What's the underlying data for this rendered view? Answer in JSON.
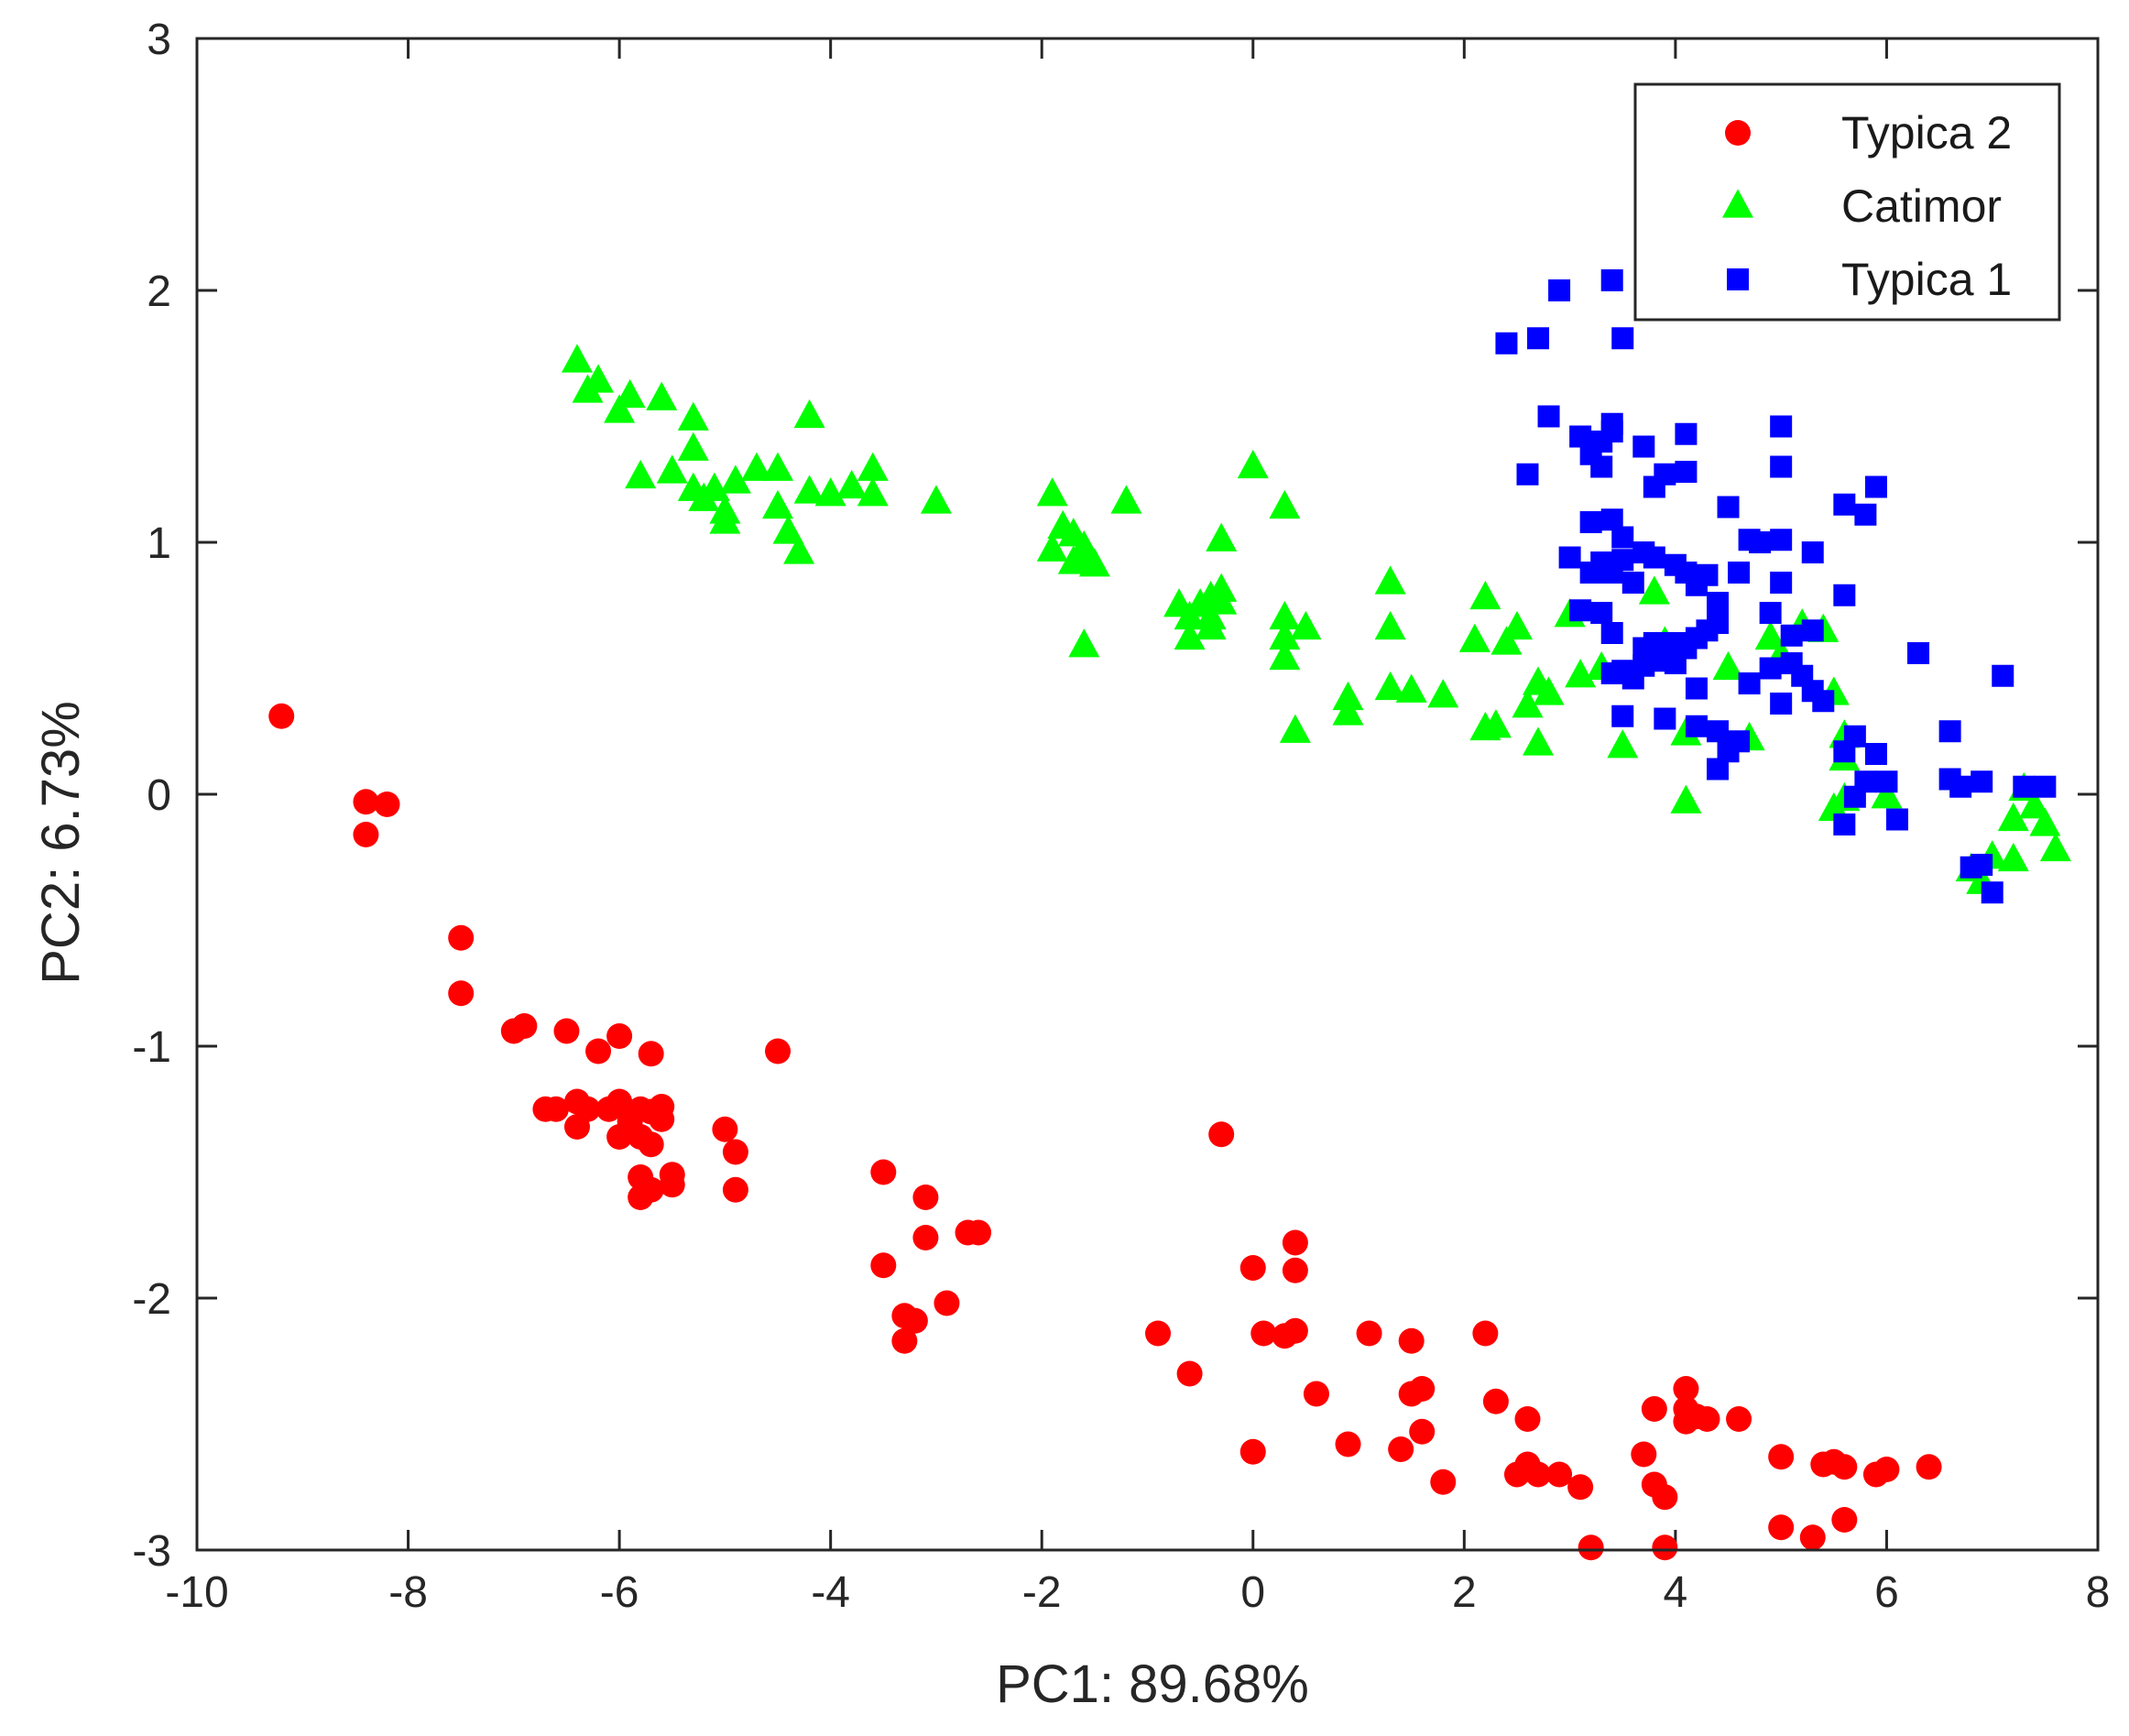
{
  "chart_data": {
    "type": "scatter",
    "title": "",
    "xlabel": "PC1: 89.68%",
    "ylabel": "PC2: 6.73%",
    "xlim": [
      -10,
      8
    ],
    "ylim": [
      -3,
      3
    ],
    "xticks": [
      -10,
      -8,
      -6,
      -4,
      -2,
      0,
      2,
      4,
      6,
      8
    ],
    "yticks": [
      -3,
      -2,
      -1,
      0,
      1,
      2,
      3
    ],
    "xtick_labels": [
      "-10",
      "-8",
      "-6",
      "-4",
      "-2",
      "0",
      "2",
      "4",
      "6",
      "8"
    ],
    "ytick_labels": [
      "-3",
      "-2",
      "-1",
      "0",
      "1",
      "2",
      "3"
    ],
    "grid": false,
    "legend_position": "top-right",
    "series": [
      {
        "name": "Typica 2",
        "marker": "circle",
        "color": "#ff0000",
        "points": [
          [
            -9.2,
            0.31
          ],
          [
            -8.4,
            -0.03
          ],
          [
            -8.4,
            -0.16
          ],
          [
            -8.2,
            -0.04
          ],
          [
            -7.5,
            -0.57
          ],
          [
            -7.5,
            -0.79
          ],
          [
            -7.0,
            -0.94
          ],
          [
            -6.9,
            -0.92
          ],
          [
            -6.5,
            -0.94
          ],
          [
            -6.7,
            -1.25
          ],
          [
            -6.6,
            -1.25
          ],
          [
            -6.4,
            -1.22
          ],
          [
            -6.3,
            -1.25
          ],
          [
            -6.4,
            -1.32
          ],
          [
            -6.2,
            -1.02
          ],
          [
            -6.1,
            -1.25
          ],
          [
            -6.0,
            -0.96
          ],
          [
            -6.0,
            -1.22
          ],
          [
            -5.9,
            -1.3
          ],
          [
            -5.8,
            -1.25
          ],
          [
            -5.8,
            -1.36
          ],
          [
            -6.0,
            -1.36
          ],
          [
            -5.7,
            -1.03
          ],
          [
            -5.7,
            -1.26
          ],
          [
            -5.6,
            -1.24
          ],
          [
            -5.6,
            -1.29
          ],
          [
            -5.7,
            -1.39
          ],
          [
            -5.8,
            -1.52
          ],
          [
            -5.8,
            -1.6
          ],
          [
            -5.7,
            -1.57
          ],
          [
            -5.5,
            -1.51
          ],
          [
            -5.5,
            -1.55
          ],
          [
            -5.0,
            -1.33
          ],
          [
            -4.9,
            -1.42
          ],
          [
            -4.9,
            -1.57
          ],
          [
            -4.5,
            -1.02
          ],
          [
            -3.5,
            -1.5
          ],
          [
            -3.5,
            -1.87
          ],
          [
            -3.3,
            -2.07
          ],
          [
            -3.2,
            -2.09
          ],
          [
            -3.3,
            -2.17
          ],
          [
            -3.1,
            -1.6
          ],
          [
            -3.1,
            -1.76
          ],
          [
            -2.9,
            -2.02
          ],
          [
            -2.7,
            -1.74
          ],
          [
            -2.6,
            -1.74
          ],
          [
            -0.3,
            -1.35
          ],
          [
            -0.9,
            -2.14
          ],
          [
            -0.6,
            -2.3
          ],
          [
            0.0,
            -1.88
          ],
          [
            0.4,
            -1.78
          ],
          [
            0.4,
            -1.89
          ],
          [
            0.1,
            -2.14
          ],
          [
            0.3,
            -2.15
          ],
          [
            0.4,
            -2.13
          ],
          [
            0.6,
            -2.38
          ],
          [
            0.0,
            -2.61
          ],
          [
            0.9,
            -2.58
          ],
          [
            1.1,
            -2.14
          ],
          [
            1.5,
            -2.17
          ],
          [
            1.5,
            -2.38
          ],
          [
            1.6,
            -2.36
          ],
          [
            1.6,
            -2.53
          ],
          [
            1.4,
            -2.6
          ],
          [
            1.8,
            -2.73
          ],
          [
            2.2,
            -2.14
          ],
          [
            2.3,
            -2.41
          ],
          [
            2.6,
            -2.48
          ],
          [
            2.5,
            -2.7
          ],
          [
            2.6,
            -2.66
          ],
          [
            2.7,
            -2.7
          ],
          [
            2.9,
            -2.7
          ],
          [
            3.1,
            -2.75
          ],
          [
            3.2,
            -2.99
          ],
          [
            3.7,
            -2.62
          ],
          [
            3.8,
            -2.44
          ],
          [
            3.8,
            -2.74
          ],
          [
            3.9,
            -2.79
          ],
          [
            3.9,
            -2.99
          ],
          [
            4.1,
            -2.36
          ],
          [
            4.1,
            -2.44
          ],
          [
            4.1,
            -2.49
          ],
          [
            4.2,
            -2.47
          ],
          [
            4.3,
            -2.48
          ],
          [
            4.6,
            -2.48
          ],
          [
            5.0,
            -2.63
          ],
          [
            5.0,
            -2.91
          ],
          [
            5.3,
            -2.95
          ],
          [
            5.4,
            -2.66
          ],
          [
            5.5,
            -2.65
          ],
          [
            5.6,
            -2.67
          ],
          [
            5.6,
            -2.88
          ],
          [
            5.9,
            -2.7
          ],
          [
            6.0,
            -2.68
          ],
          [
            6.4,
            -2.67
          ]
        ]
      },
      {
        "name": "Catimor",
        "marker": "triangle",
        "color": "#00ff00",
        "points": [
          [
            -6.4,
            1.72
          ],
          [
            -6.3,
            1.6
          ],
          [
            -6.2,
            1.64
          ],
          [
            -6.0,
            1.52
          ],
          [
            -5.9,
            1.58
          ],
          [
            -5.6,
            1.57
          ],
          [
            -5.3,
            1.49
          ],
          [
            -5.3,
            1.37
          ],
          [
            -5.3,
            1.21
          ],
          [
            -5.8,
            1.26
          ],
          [
            -5.5,
            1.28
          ],
          [
            -5.2,
            1.17
          ],
          [
            -5.1,
            1.21
          ],
          [
            -5.0,
            1.12
          ],
          [
            -5.0,
            1.08
          ],
          [
            -4.9,
            1.24
          ],
          [
            -4.7,
            1.29
          ],
          [
            -4.5,
            1.29
          ],
          [
            -4.5,
            1.14
          ],
          [
            -4.4,
            1.04
          ],
          [
            -4.3,
            0.96
          ],
          [
            -4.2,
            1.5
          ],
          [
            -4.2,
            1.2
          ],
          [
            -4.0,
            1.19
          ],
          [
            -3.8,
            1.22
          ],
          [
            -3.6,
            1.29
          ],
          [
            -3.6,
            1.19
          ],
          [
            -3.0,
            1.16
          ],
          [
            -1.9,
            1.19
          ],
          [
            -1.9,
            0.97
          ],
          [
            -1.8,
            1.06
          ],
          [
            -1.7,
            1.03
          ],
          [
            -1.6,
            0.98
          ],
          [
            -1.6,
            0.93
          ],
          [
            -1.7,
            0.92
          ],
          [
            -1.5,
            0.91
          ],
          [
            -1.2,
            1.16
          ],
          [
            -1.6,
            0.59
          ],
          [
            -0.7,
            0.75
          ],
          [
            -0.6,
            0.7
          ],
          [
            -0.6,
            0.62
          ],
          [
            -0.5,
            0.75
          ],
          [
            -0.4,
            0.78
          ],
          [
            -0.4,
            0.7
          ],
          [
            -0.4,
            0.66
          ],
          [
            -0.3,
            1.01
          ],
          [
            -0.3,
            0.81
          ],
          [
            -0.3,
            0.76
          ],
          [
            0.0,
            1.3
          ],
          [
            0.3,
            1.14
          ],
          [
            0.3,
            0.7
          ],
          [
            0.3,
            0.62
          ],
          [
            0.3,
            0.54
          ],
          [
            0.5,
            0.66
          ],
          [
            0.4,
            0.25
          ],
          [
            0.9,
            0.38
          ],
          [
            0.9,
            0.32
          ],
          [
            1.3,
            0.84
          ],
          [
            1.3,
            0.66
          ],
          [
            1.3,
            0.42
          ],
          [
            1.5,
            0.41
          ],
          [
            1.8,
            0.39
          ],
          [
            2.1,
            0.61
          ],
          [
            2.2,
            0.78
          ],
          [
            2.2,
            0.26
          ],
          [
            2.3,
            0.27
          ],
          [
            2.4,
            0.6
          ],
          [
            2.5,
            0.66
          ],
          [
            2.6,
            0.35
          ],
          [
            2.7,
            0.44
          ],
          [
            2.7,
            0.2
          ],
          [
            2.8,
            0.4
          ],
          [
            3.0,
            0.71
          ],
          [
            3.1,
            0.47
          ],
          [
            3.3,
            0.5
          ],
          [
            3.5,
            0.19
          ],
          [
            3.8,
            0.8
          ],
          [
            3.9,
            0.6
          ],
          [
            4.1,
            0.24
          ],
          [
            4.1,
            -0.03
          ],
          [
            4.5,
            0.5
          ],
          [
            4.7,
            0.22
          ],
          [
            4.9,
            0.62
          ],
          [
            5.0,
            0.55
          ],
          [
            5.2,
            0.67
          ],
          [
            5.4,
            0.65
          ],
          [
            5.5,
            0.4
          ],
          [
            5.6,
            0.23
          ],
          [
            5.6,
            0.14
          ],
          [
            5.5,
            -0.06
          ],
          [
            5.6,
            -0.02
          ],
          [
            6.0,
            -0.01
          ],
          [
            6.8,
            -0.3
          ],
          [
            6.9,
            -0.35
          ],
          [
            7.0,
            -0.25
          ],
          [
            7.2,
            -0.1
          ],
          [
            7.2,
            -0.26
          ],
          [
            7.3,
            0.02
          ],
          [
            7.4,
            -0.05
          ],
          [
            7.5,
            -0.12
          ],
          [
            7.6,
            -0.22
          ]
        ]
      },
      {
        "name": "Typica 1",
        "marker": "square",
        "color": "#0000ff",
        "points": [
          [
            2.4,
            1.79
          ],
          [
            2.7,
            1.81
          ],
          [
            2.9,
            2.0
          ],
          [
            3.4,
            2.04
          ],
          [
            3.5,
            1.81
          ],
          [
            2.8,
            1.5
          ],
          [
            3.1,
            1.42
          ],
          [
            3.2,
            1.35
          ],
          [
            3.3,
            1.4
          ],
          [
            3.4,
            1.44
          ],
          [
            3.4,
            1.47
          ],
          [
            2.6,
            1.27
          ],
          [
            3.3,
            1.3
          ],
          [
            3.7,
            1.38
          ],
          [
            3.8,
            1.22
          ],
          [
            3.9,
            1.27
          ],
          [
            4.1,
            1.43
          ],
          [
            4.1,
            1.28
          ],
          [
            4.5,
            1.14
          ],
          [
            5.0,
            1.46
          ],
          [
            5.0,
            1.3
          ],
          [
            5.6,
            1.15
          ],
          [
            5.9,
            1.22
          ],
          [
            5.8,
            1.11
          ],
          [
            3.2,
            1.08
          ],
          [
            3.4,
            1.09
          ],
          [
            3.5,
            1.02
          ],
          [
            3.0,
            0.94
          ],
          [
            3.2,
            0.88
          ],
          [
            3.3,
            0.92
          ],
          [
            3.4,
            0.88
          ],
          [
            3.5,
            0.93
          ],
          [
            3.6,
            0.84
          ],
          [
            3.7,
            0.96
          ],
          [
            3.8,
            0.94
          ],
          [
            4.0,
            0.91
          ],
          [
            4.1,
            0.88
          ],
          [
            4.2,
            0.83
          ],
          [
            4.3,
            0.87
          ],
          [
            4.6,
            0.88
          ],
          [
            4.7,
            1.01
          ],
          [
            4.8,
            1.0
          ],
          [
            5.0,
            1.01
          ],
          [
            5.3,
            0.96
          ],
          [
            5.6,
            0.79
          ],
          [
            4.4,
            0.76
          ],
          [
            4.9,
            0.72
          ],
          [
            5.0,
            0.84
          ],
          [
            3.1,
            0.73
          ],
          [
            3.3,
            0.72
          ],
          [
            3.4,
            0.64
          ],
          [
            3.7,
            0.58
          ],
          [
            3.8,
            0.6
          ],
          [
            3.9,
            0.55
          ],
          [
            4.0,
            0.6
          ],
          [
            4.1,
            0.58
          ],
          [
            4.2,
            0.62
          ],
          [
            4.3,
            0.65
          ],
          [
            4.4,
            0.68
          ],
          [
            5.1,
            0.63
          ],
          [
            5.3,
            0.65
          ],
          [
            5.1,
            0.52
          ],
          [
            5.2,
            0.47
          ],
          [
            5.3,
            0.41
          ],
          [
            5.4,
            0.37
          ],
          [
            3.4,
            0.48
          ],
          [
            3.5,
            0.49
          ],
          [
            3.6,
            0.46
          ],
          [
            3.7,
            0.51
          ],
          [
            3.8,
            0.53
          ],
          [
            4.2,
            0.42
          ],
          [
            4.0,
            0.52
          ],
          [
            4.9,
            0.5
          ],
          [
            4.7,
            0.44
          ],
          [
            5.0,
            0.36
          ],
          [
            3.5,
            0.31
          ],
          [
            3.9,
            0.3
          ],
          [
            4.2,
            0.27
          ],
          [
            4.4,
            0.25
          ],
          [
            4.5,
            0.17
          ],
          [
            4.6,
            0.21
          ],
          [
            4.4,
            0.1
          ],
          [
            5.6,
            0.17
          ],
          [
            5.7,
            0.23
          ],
          [
            5.9,
            0.16
          ],
          [
            6.0,
            0.05
          ],
          [
            5.7,
            -0.01
          ],
          [
            5.6,
            -0.12
          ],
          [
            6.1,
            -0.1
          ],
          [
            6.3,
            0.56
          ],
          [
            6.6,
            0.25
          ],
          [
            6.6,
            0.06
          ],
          [
            6.7,
            0.03
          ],
          [
            6.9,
            0.05
          ],
          [
            7.1,
            0.47
          ],
          [
            6.9,
            -0.28
          ],
          [
            6.8,
            -0.29
          ],
          [
            7.0,
            -0.39
          ],
          [
            7.3,
            0.03
          ],
          [
            7.5,
            0.03
          ],
          [
            5.8,
            0.05
          ]
        ]
      }
    ]
  }
}
